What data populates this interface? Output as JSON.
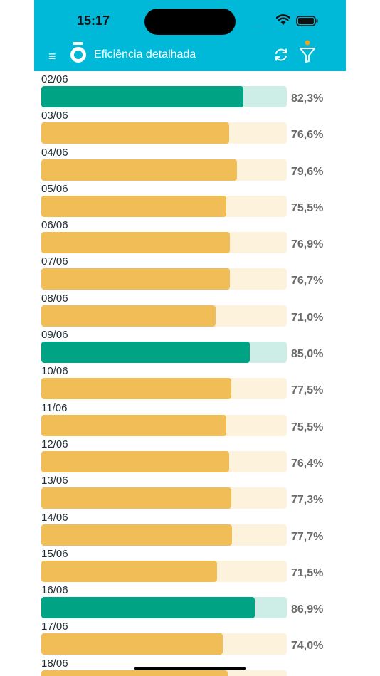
{
  "status_bar": {
    "time": "15:17",
    "signal": "....",
    "icons": [
      "wifi-icon",
      "battery-icon"
    ]
  },
  "header": {
    "title": "Eficiência detalhada",
    "menu_icon": "≡",
    "icons": [
      "menu-icon",
      "app-logo",
      "refresh-icon",
      "filter-icon"
    ]
  },
  "colors": {
    "header": "#00b9d8",
    "good_fill": "#00a383",
    "good_track": "#cdeee7",
    "warn_fill": "#f0bd56",
    "warn_track": "#fdf2dc"
  },
  "rows": [
    {
      "date": "02/06",
      "value": 82.3,
      "label": "82,3%",
      "status": "good"
    },
    {
      "date": "03/06",
      "value": 76.6,
      "label": "76,6%",
      "status": "warn"
    },
    {
      "date": "04/06",
      "value": 79.6,
      "label": "79,6%",
      "status": "warn"
    },
    {
      "date": "05/06",
      "value": 75.5,
      "label": "75,5%",
      "status": "warn"
    },
    {
      "date": "06/06",
      "value": 76.9,
      "label": "76,9%",
      "status": "warn"
    },
    {
      "date": "07/06",
      "value": 76.7,
      "label": "76,7%",
      "status": "warn"
    },
    {
      "date": "08/06",
      "value": 71.0,
      "label": "71,0%",
      "status": "warn"
    },
    {
      "date": "09/06",
      "value": 85.0,
      "label": "85,0%",
      "status": "good"
    },
    {
      "date": "10/06",
      "value": 77.5,
      "label": "77,5%",
      "status": "warn"
    },
    {
      "date": "11/06",
      "value": 75.5,
      "label": "75,5%",
      "status": "warn"
    },
    {
      "date": "12/06",
      "value": 76.4,
      "label": "76,4%",
      "status": "warn"
    },
    {
      "date": "13/06",
      "value": 77.3,
      "label": "77,3%",
      "status": "warn"
    },
    {
      "date": "14/06",
      "value": 77.7,
      "label": "77,7%",
      "status": "warn"
    },
    {
      "date": "15/06",
      "value": 71.5,
      "label": "71,5%",
      "status": "warn"
    },
    {
      "date": "16/06",
      "value": 86.9,
      "label": "86,9%",
      "status": "good"
    },
    {
      "date": "17/06",
      "value": 74.0,
      "label": "74,0%",
      "status": "warn"
    },
    {
      "date": "18/06",
      "value": 76.0,
      "label": "",
      "status": "warn"
    }
  ]
}
